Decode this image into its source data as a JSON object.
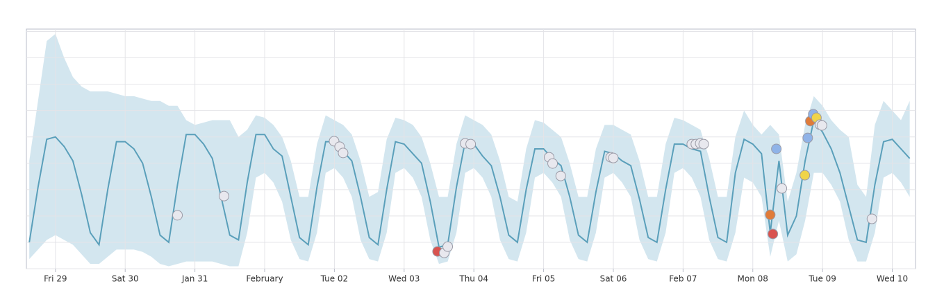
{
  "chart_data": {
    "type": "line",
    "x": [
      -9,
      -6,
      -3,
      0,
      3,
      6,
      9,
      12,
      15,
      18,
      21,
      24,
      27,
      30,
      33,
      36,
      39,
      42,
      45,
      48,
      51,
      54,
      57,
      60,
      63,
      66,
      69,
      72,
      75,
      78,
      81,
      84,
      87,
      90,
      93,
      96,
      99,
      102,
      105,
      108,
      111,
      114,
      117,
      120,
      123,
      126,
      129,
      132,
      135,
      138,
      141,
      144,
      147,
      150,
      153,
      156,
      159,
      162,
      165,
      168,
      171,
      174,
      177,
      180,
      183,
      186,
      189,
      192,
      195,
      198,
      201,
      204,
      207,
      210,
      213,
      216,
      219,
      222,
      225,
      228,
      231,
      234,
      237,
      240,
      243,
      246,
      249,
      252,
      255,
      258,
      261,
      264,
      267,
      270,
      273,
      276,
      279,
      282,
      285,
      288,
      291,
      294
    ],
    "line": {
      "color": "#5a9fba",
      "values": [
        11,
        34,
        54,
        55,
        51,
        45,
        31,
        15,
        10,
        33,
        53,
        53,
        50,
        44,
        30,
        14,
        11,
        35,
        56,
        56,
        52,
        46,
        30,
        14,
        12,
        36,
        56,
        56,
        50,
        47,
        30,
        13,
        10,
        34,
        53,
        53,
        49,
        45,
        30,
        13,
        10,
        33,
        53,
        52,
        48,
        44,
        28,
        9,
        10,
        34,
        53,
        52,
        47,
        43,
        30,
        14,
        11,
        33,
        50,
        50,
        46,
        43,
        30,
        14,
        11,
        32,
        49,
        48,
        45,
        43,
        29,
        13,
        11,
        33,
        52,
        52,
        50,
        49,
        30,
        13,
        11,
        40,
        54,
        52,
        48,
        15,
        45,
        14,
        22,
        45,
        62,
        57,
        50,
        40,
        26,
        12,
        11,
        35,
        53,
        54,
        50,
        46
      ]
    },
    "band": {
      "color": "#d3e6ef",
      "upper": [
        45,
        70,
        95,
        98,
        88,
        80,
        76,
        74,
        74,
        74,
        73,
        72,
        72,
        71,
        70,
        70,
        68,
        68,
        62,
        60,
        61,
        62,
        62,
        62,
        55,
        58,
        64,
        63,
        60,
        55,
        45,
        30,
        30,
        52,
        64,
        62,
        60,
        56,
        45,
        30,
        32,
        54,
        63,
        62,
        60,
        55,
        44,
        30,
        30,
        52,
        64,
        62,
        60,
        56,
        45,
        30,
        28,
        50,
        62,
        61,
        58,
        55,
        44,
        30,
        30,
        50,
        60,
        60,
        58,
        56,
        45,
        30,
        30,
        52,
        63,
        62,
        60,
        58,
        46,
        30,
        30,
        55,
        66,
        60,
        56,
        60,
        56,
        28,
        40,
        60,
        72,
        68,
        62,
        58,
        55,
        35,
        30,
        60,
        70,
        66,
        62,
        70
      ],
      "lower": [
        4,
        8,
        12,
        14,
        12,
        10,
        6,
        2,
        2,
        5,
        8,
        8,
        8,
        7,
        5,
        2,
        1,
        2,
        3,
        3,
        3,
        3,
        2,
        1,
        1,
        15,
        38,
        40,
        36,
        28,
        12,
        4,
        3,
        15,
        40,
        42,
        38,
        30,
        12,
        4,
        3,
        15,
        40,
        42,
        38,
        30,
        12,
        2,
        3,
        15,
        40,
        42,
        38,
        30,
        12,
        4,
        3,
        15,
        38,
        40,
        36,
        30,
        12,
        4,
        3,
        15,
        38,
        40,
        36,
        30,
        12,
        4,
        3,
        15,
        40,
        42,
        38,
        30,
        12,
        4,
        3,
        15,
        38,
        36,
        30,
        5,
        20,
        3,
        6,
        20,
        40,
        40,
        35,
        28,
        12,
        3,
        3,
        15,
        38,
        40,
        36,
        30
      ]
    },
    "anomalies": {
      "x": [
        42.0,
        58.0,
        95.9,
        97.8,
        99.0,
        131.5,
        133.8,
        135.0,
        141.0,
        142.9,
        169.9,
        171.1,
        173.9,
        191.1,
        192.0,
        219.0,
        220.4,
        221.9,
        223.1,
        246.0,
        246.9,
        248.1,
        250.0,
        257.9,
        258.9,
        259.8,
        260.8,
        261.9,
        263.1,
        263.8,
        281.0
      ],
      "values": [
        22.3,
        30.3,
        53.2,
        50.9,
        48.3,
        7.2,
        6.6,
        9.2,
        52.3,
        52.0,
        46.5,
        43.9,
        38.7,
        46.5,
        46.2,
        52.0,
        52.0,
        52.3,
        52.0,
        22.5,
        14.5,
        50.0,
        33.5,
        39.0,
        54.6,
        61.6,
        64.5,
        63.0,
        60.1,
        59.8,
        20.8
      ],
      "colors": [
        "#e8e8ee",
        "#e8e8ee",
        "#e8e8ee",
        "#e8e8ee",
        "#e8e8ee",
        "#d9534f",
        "#e8e8ee",
        "#e8e8ee",
        "#e8e8ee",
        "#e8e8ee",
        "#e8e8ee",
        "#e8e8ee",
        "#e8e8ee",
        "#e8e8ee",
        "#e8e8ee",
        "#e8e8ee",
        "#e8e8ee",
        "#e8e8ee",
        "#e8e8ee",
        "#e07b39",
        "#d9534f",
        "#8fb3e8",
        "#e8e8ee",
        "#f0d44a",
        "#8fb3e8",
        "#e07b39",
        "#8fb3e8",
        "#f0d44a",
        "#e8e8ee",
        "#e8e8ee",
        "#e8e8ee"
      ]
    },
    "xlim": [
      -10,
      296
    ],
    "xticks": [
      {
        "value": 0,
        "label": "Fri 29"
      },
      {
        "value": 24,
        "label": "Sat 30"
      },
      {
        "value": 48,
        "label": "Jan 31"
      },
      {
        "value": 72,
        "label": "February"
      },
      {
        "value": 96,
        "label": "Tue 02"
      },
      {
        "value": 120,
        "label": "Wed 03"
      },
      {
        "value": 144,
        "label": "Thu 04"
      },
      {
        "value": 168,
        "label": "Fri 05"
      },
      {
        "value": 192,
        "label": "Sat 06"
      },
      {
        "value": 216,
        "label": "Feb 07"
      },
      {
        "value": 240,
        "label": "Mon 08"
      },
      {
        "value": 264,
        "label": "Tue 09"
      },
      {
        "value": 288,
        "label": "Wed 10"
      }
    ],
    "ylim": [
      0,
      100
    ],
    "yticks": [
      0,
      11,
      22,
      33,
      44,
      55,
      66,
      77,
      88,
      99
    ],
    "grid": true
  }
}
